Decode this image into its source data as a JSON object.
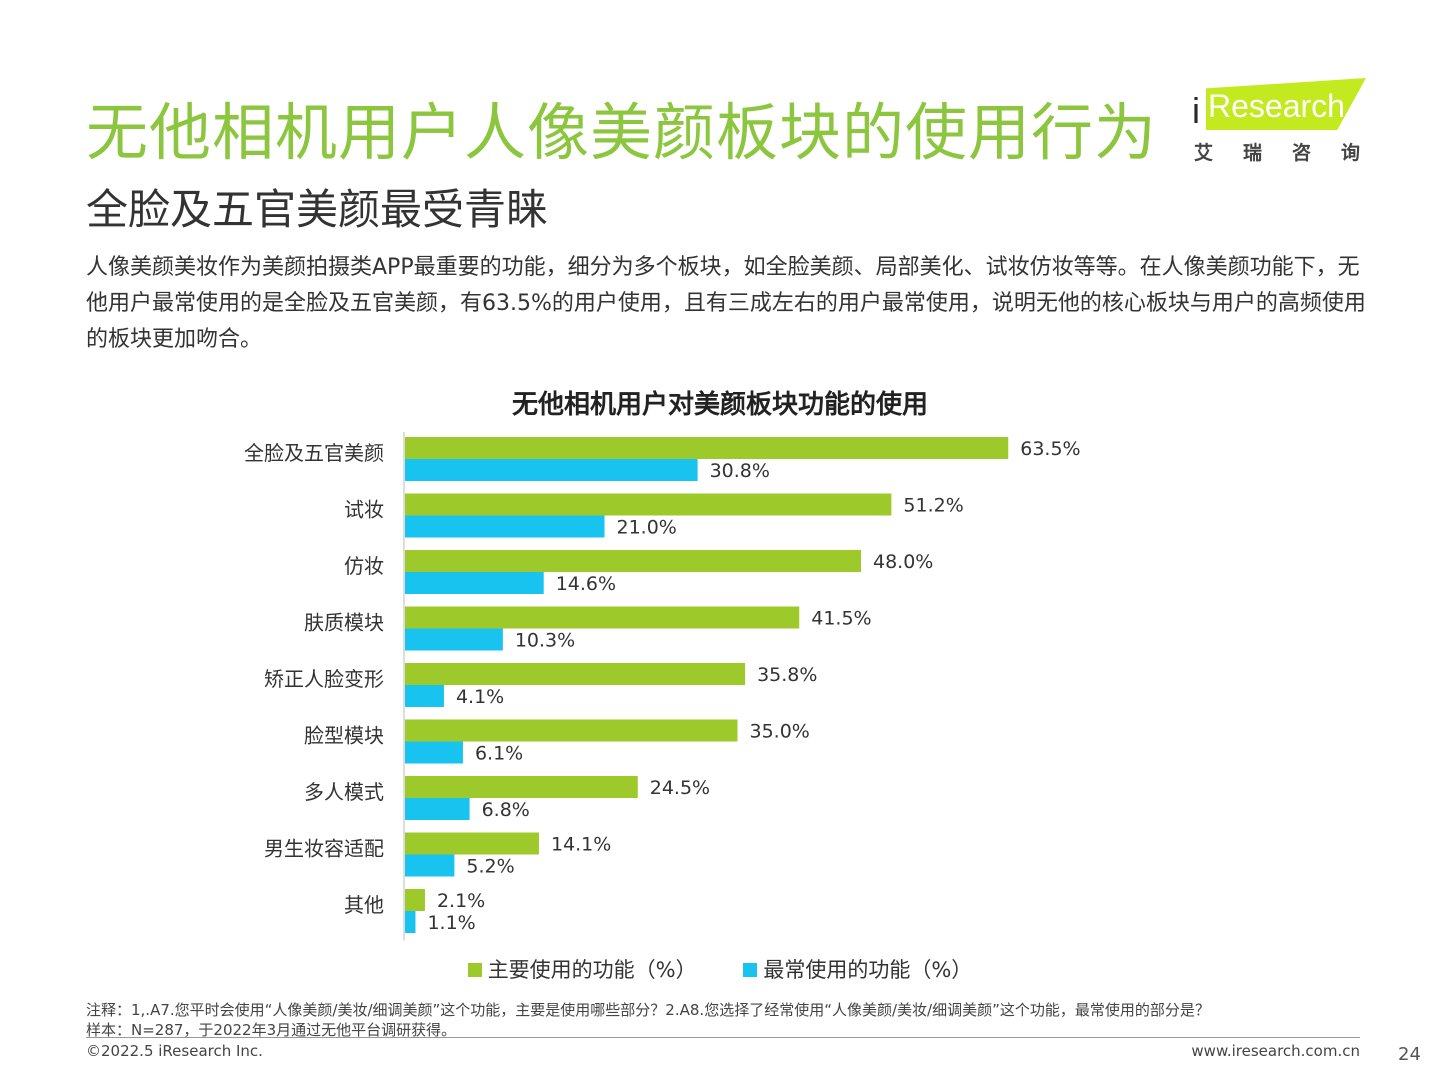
{
  "header": {
    "title": "无他相机用户人像美颜板块的使用行为",
    "subtitle": "全脸及五官美颜最受青睐",
    "description": "人像美颜美妆作为美颜拍摄类APP最重要的功能，细分为多个板块，如全脸美颜、局部美化、试妆仿妆等等。在人像美颜功能下，无他用户最常使用的是全脸及五官美颜，有63.5%的用户使用，且有三成左右的用户最常使用，说明无他的核心板块与用户的高频使用的板块更加吻合。"
  },
  "logo": {
    "brand_i": "i",
    "brand_text": "Research",
    "brand_cn": "艾瑞咨询"
  },
  "chart_data": {
    "type": "bar",
    "orientation": "horizontal",
    "title": "无他相机用户对美颜板块功能的使用",
    "categories": [
      "全脸及五官美颜",
      "试妆",
      "仿妆",
      "肤质模块",
      "矫正人脸变形",
      "脸型模块",
      "多人模式",
      "男生妆容适配",
      "其他"
    ],
    "series": [
      {
        "name": "主要使用的功能（%）",
        "color": "#9dc92a",
        "values": [
          63.5,
          51.2,
          48.0,
          41.5,
          35.8,
          35.0,
          24.5,
          14.1,
          2.1
        ]
      },
      {
        "name": "最常使用的功能（%）",
        "color": "#19c3f0",
        "values": [
          30.8,
          21.0,
          14.6,
          10.3,
          4.1,
          6.1,
          6.8,
          5.2,
          1.1
        ]
      }
    ],
    "value_suffix": "%",
    "xlim": [
      0,
      100
    ],
    "legend_position": "bottom",
    "grid": false
  },
  "footer": {
    "note_line1": "注释：1,.A7.您平时会使用“人像美颜/美妆/细调美颜”这个功能，主要是使用哪些部分？2.A8.您选择了经常使用“人像美颜/美妆/细调美颜”这个功能，最常使用的部分是？",
    "note_line2": "样本：N=287，于2022年3月通过无他平台调研获得。",
    "copyright": "©2022.5 iResearch Inc.",
    "website": "www.iresearch.com.cn",
    "page_number": "24"
  }
}
